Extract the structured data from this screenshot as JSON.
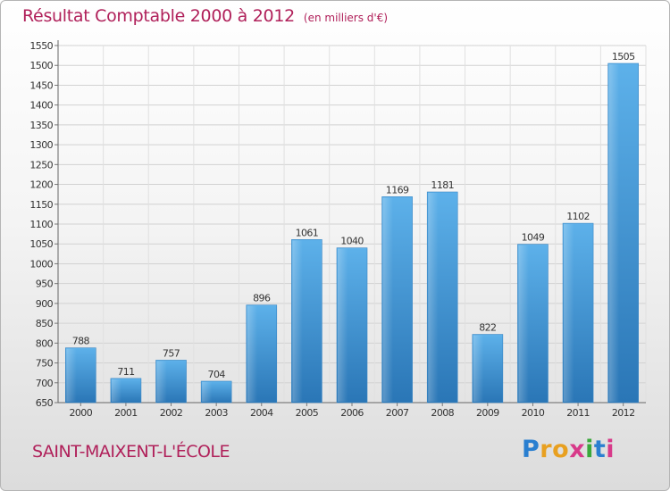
{
  "header": {
    "title": "Résultat Comptable 2000 à 2012",
    "subtitle": "(en milliers d'€)"
  },
  "footer": {
    "commune": "SAINT-MAIXENT-L'ÉCOLE",
    "logo_letters": [
      "P",
      "r",
      "o",
      "x",
      "i",
      "t",
      "i"
    ]
  },
  "colors": {
    "accent": "#b0205a",
    "bar_top": "#5aaee8",
    "bar_bottom": "#2a78b8",
    "grid": "#cccccc"
  },
  "chart_data": {
    "type": "bar",
    "title": "Résultat Comptable 2000 à 2012",
    "subtitle": "(en milliers d'€)",
    "categories": [
      "2000",
      "2001",
      "2002",
      "2003",
      "2004",
      "2005",
      "2006",
      "2007",
      "2008",
      "2009",
      "2010",
      "2011",
      "2012"
    ],
    "values": [
      788,
      711,
      757,
      704,
      896,
      1061,
      1040,
      1169,
      1181,
      822,
      1049,
      1102,
      1505
    ],
    "ylim": [
      650,
      1550
    ],
    "ytick_step": 50,
    "grid": true,
    "legend": "none"
  }
}
